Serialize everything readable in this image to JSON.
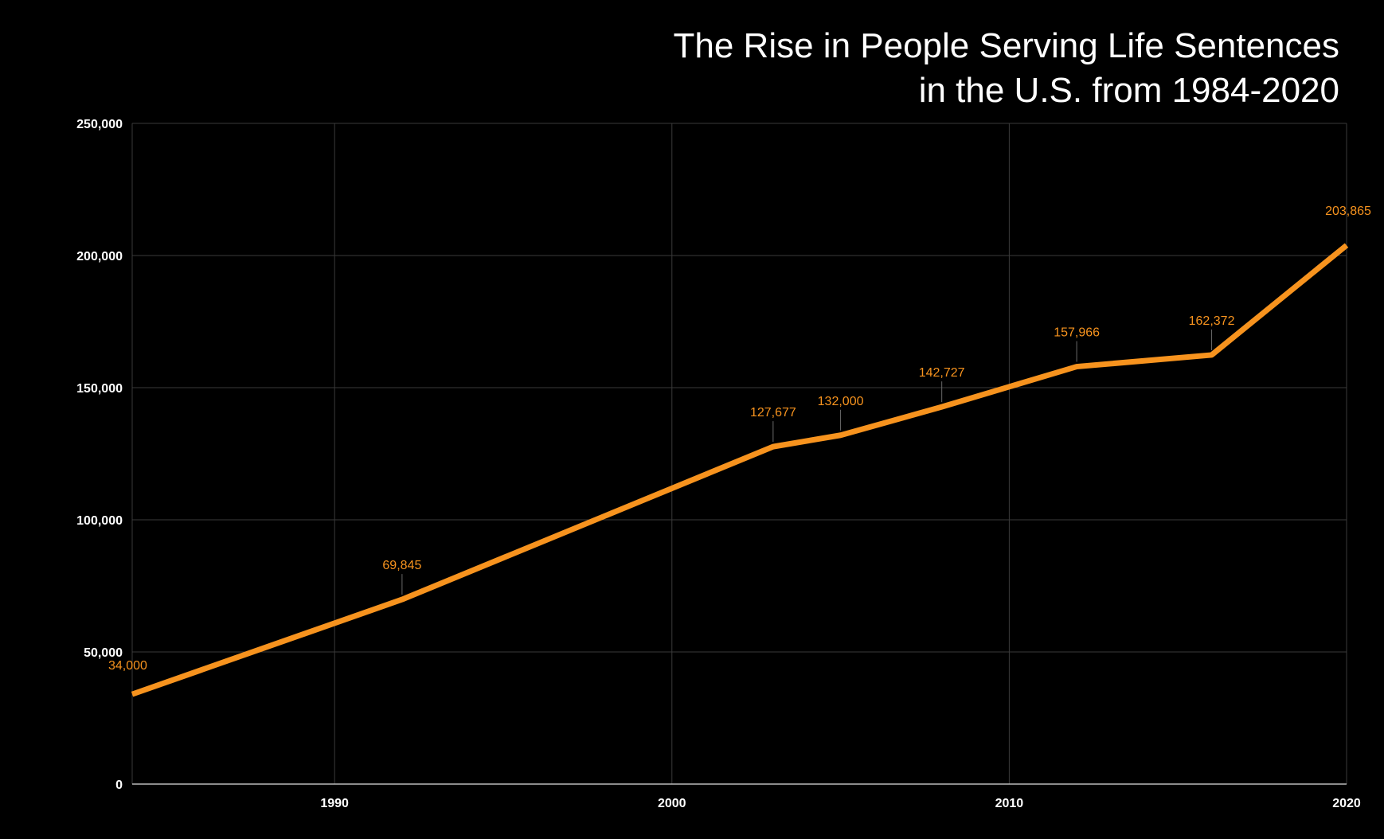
{
  "chart_data": {
    "type": "line",
    "title_lines": [
      "The Rise in People Serving Life Sentences",
      "in the U.S. from 1984-2020"
    ],
    "xlabel": "",
    "ylabel": "",
    "xlim": [
      1984,
      2020
    ],
    "ylim": [
      0,
      250000
    ],
    "x_ticks": [
      {
        "value": 1990,
        "label": "1990"
      },
      {
        "value": 2000,
        "label": "2000"
      },
      {
        "value": 2010,
        "label": "2010"
      },
      {
        "value": 2020,
        "label": "2020"
      }
    ],
    "y_ticks": [
      {
        "value": 0,
        "label": "0"
      },
      {
        "value": 50000,
        "label": "50,000"
      },
      {
        "value": 100000,
        "label": "100,000"
      },
      {
        "value": 150000,
        "label": "150,000"
      },
      {
        "value": 200000,
        "label": "200,000"
      },
      {
        "value": 250000,
        "label": "250,000"
      }
    ],
    "grid": true,
    "series": [
      {
        "color": "#f7931e",
        "points": [
          {
            "x": 1984,
            "y": 34000,
            "label": "34,000"
          },
          {
            "x": 1992,
            "y": 69845,
            "label": "69,845"
          },
          {
            "x": 2003,
            "y": 127677,
            "label": "127,677"
          },
          {
            "x": 2005,
            "y": 132000,
            "label": "132,000"
          },
          {
            "x": 2008,
            "y": 142727,
            "label": "142,727"
          },
          {
            "x": 2012,
            "y": 157966,
            "label": "157,966"
          },
          {
            "x": 2016,
            "y": 162372,
            "label": "162,372"
          },
          {
            "x": 2020,
            "y": 203865,
            "label": "203,865"
          }
        ]
      }
    ],
    "colors": {
      "background": "#000000",
      "grid": "#3a3a3a",
      "axis": "#bbbbbb",
      "text": "#ffffff",
      "line": "#f7931e"
    }
  }
}
